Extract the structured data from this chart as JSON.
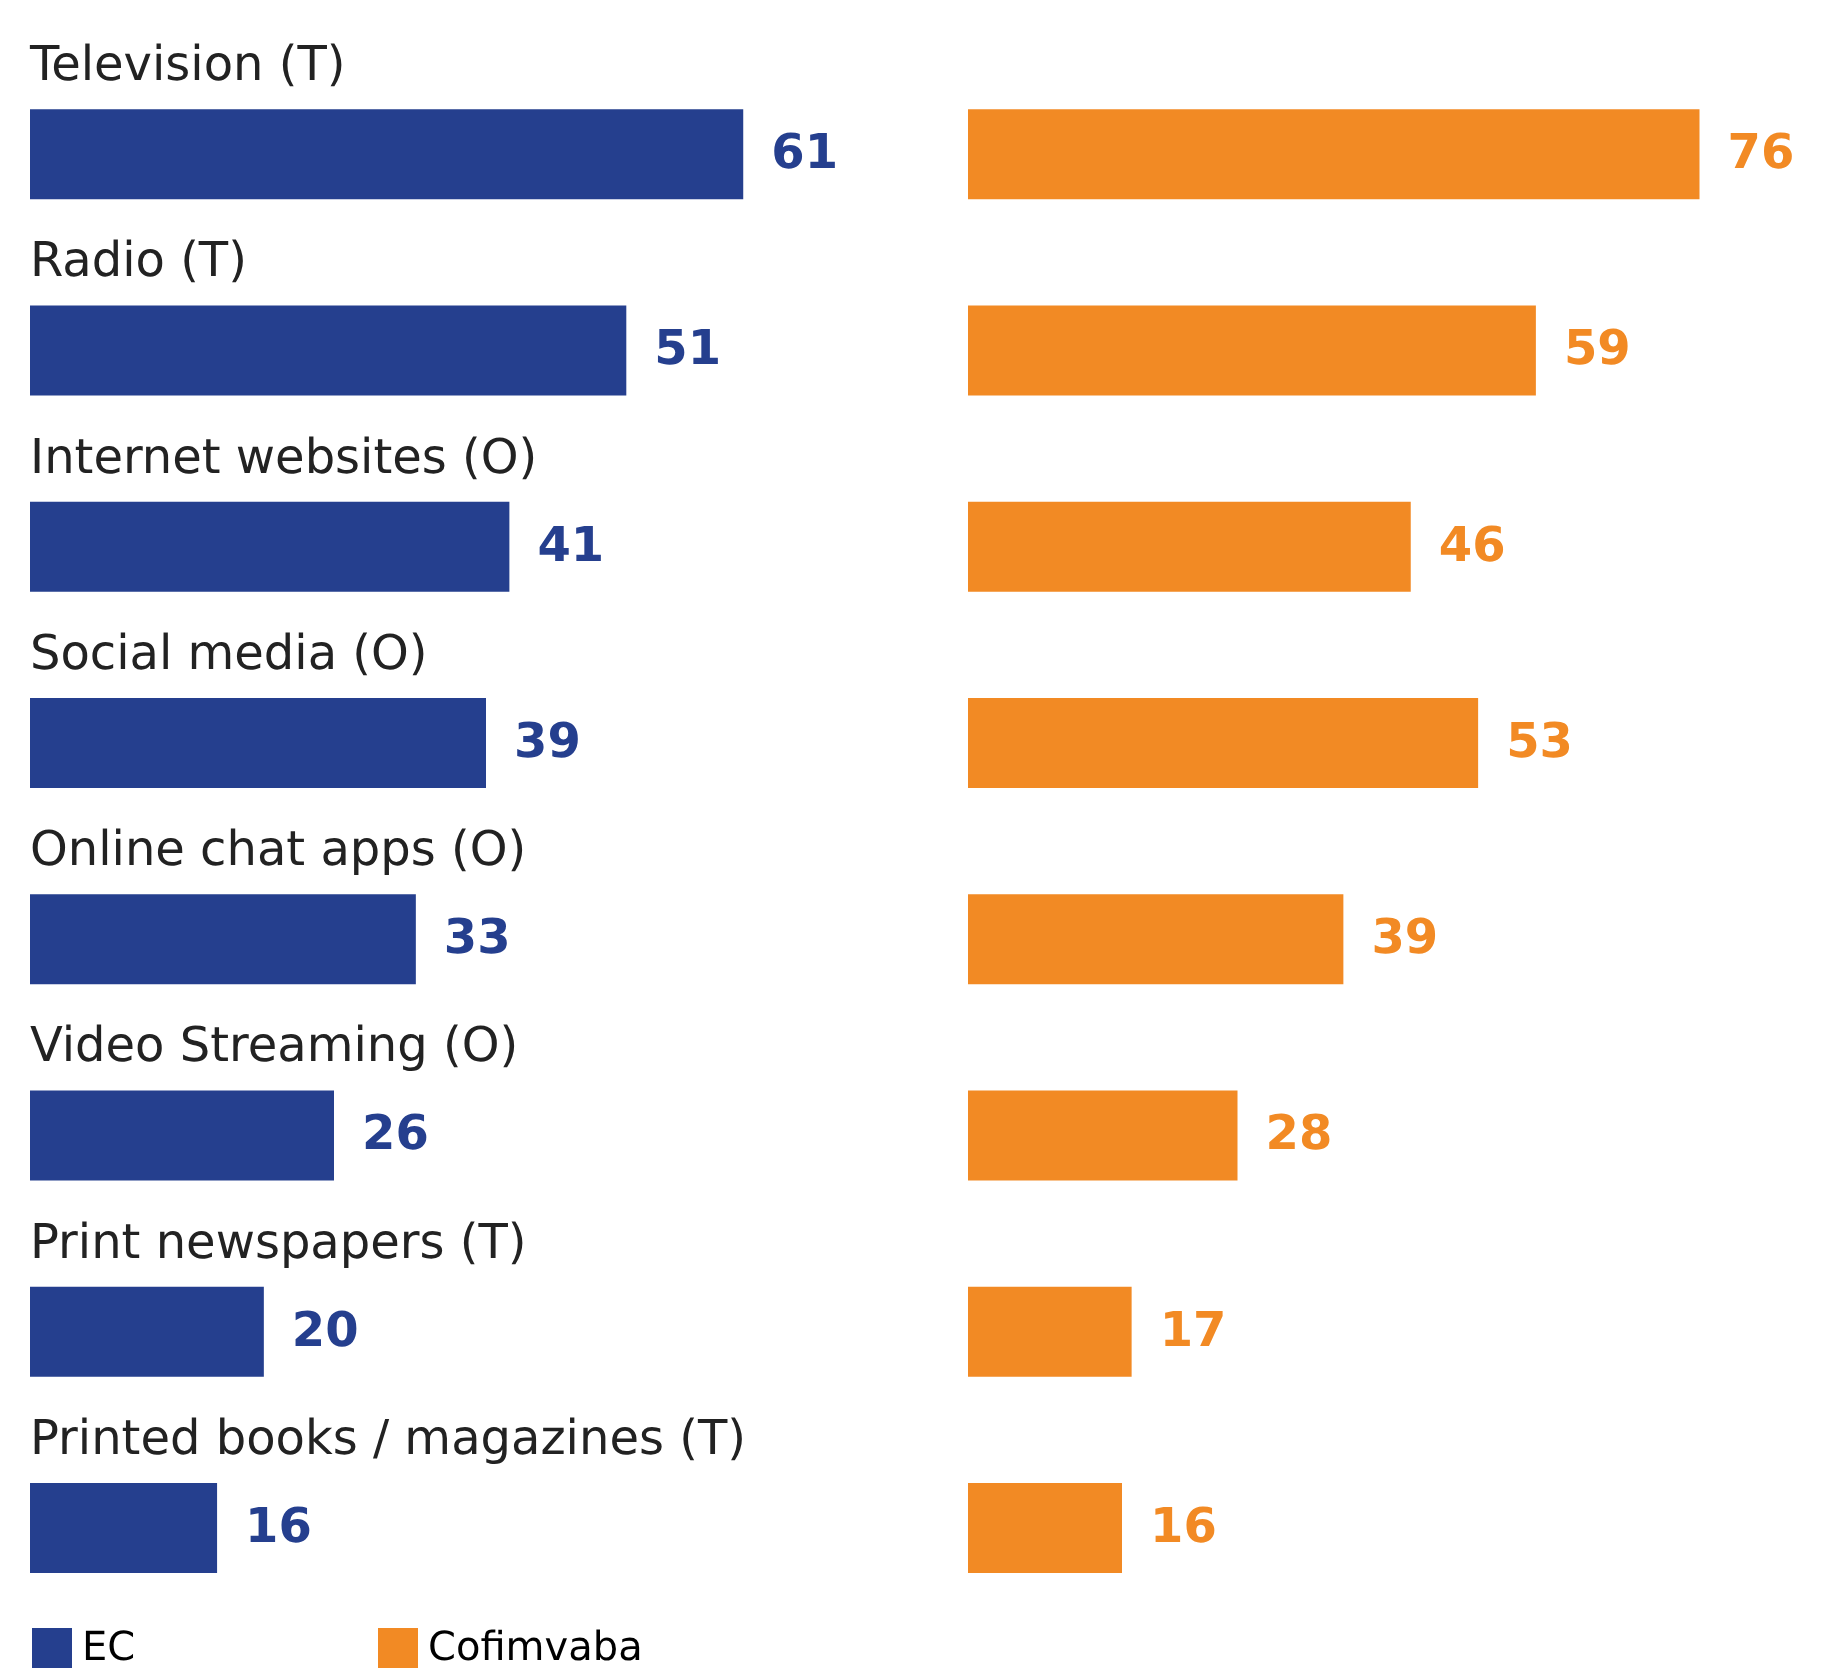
{
  "chart_data": [
    {
      "type": "bar",
      "orientation": "horizontal",
      "categories": [
        "Television (T)",
        "Radio (T)",
        "Internet websites (O)",
        "Social media (O)",
        "Online chat apps (O)",
        "Video Streaming (O)",
        "Print newspapers (T)",
        "Printed books / magazines (T)"
      ],
      "series": [
        {
          "name": "EC",
          "color": "#253f8e",
          "values": [
            61,
            51,
            41,
            39,
            33,
            26,
            20,
            16
          ]
        }
      ],
      "data_labels": true,
      "legend": "bottom"
    },
    {
      "type": "bar",
      "orientation": "horizontal",
      "categories": [
        null,
        null,
        null,
        null,
        null,
        null,
        null,
        null
      ],
      "series": [
        {
          "name": "Cofimvaba",
          "color": "#f28a24",
          "values": [
            76,
            59,
            46,
            53,
            39,
            28,
            17,
            16
          ]
        }
      ],
      "data_labels": true,
      "legend": "bottom"
    }
  ]
}
